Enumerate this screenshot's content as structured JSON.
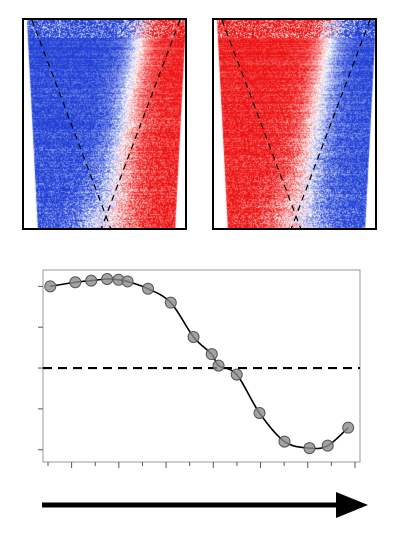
{
  "heatmaps": [
    {
      "name": "left",
      "colors": {
        "negative": "#1f3fd6",
        "positive": "#ee1111",
        "neutral": "#ffffff"
      }
    },
    {
      "name": "right",
      "colors": {
        "negative": "#1f3fd6",
        "positive": "#ee1111",
        "neutral": "#ffffff"
      }
    }
  ],
  "chart_data": {
    "type": "scatter",
    "title": "",
    "xlabel": "",
    "ylabel": "",
    "xlim": [
      0,
      13.5
    ],
    "ylim": [
      -1.15,
      1.2
    ],
    "reference_line": 0,
    "grid": false,
    "points": [
      [
        0.1,
        1.0
      ],
      [
        1.2,
        1.05
      ],
      [
        1.9,
        1.07
      ],
      [
        2.6,
        1.09
      ],
      [
        3.1,
        1.08
      ],
      [
        3.5,
        1.06
      ],
      [
        4.4,
        0.97
      ],
      [
        5.4,
        0.8
      ],
      [
        6.4,
        0.38
      ],
      [
        7.2,
        0.17
      ],
      [
        7.5,
        0.03
      ],
      [
        8.3,
        -0.08
      ],
      [
        9.3,
        -0.55
      ],
      [
        10.4,
        -0.9
      ],
      [
        11.5,
        -0.98
      ],
      [
        12.3,
        -0.95
      ],
      [
        13.2,
        -0.73
      ]
    ],
    "fit_curve": true,
    "colors": {
      "points": "#8c8c8c",
      "line": "#000000"
    }
  },
  "arrow": {
    "direction": "right",
    "color": "#000000"
  }
}
